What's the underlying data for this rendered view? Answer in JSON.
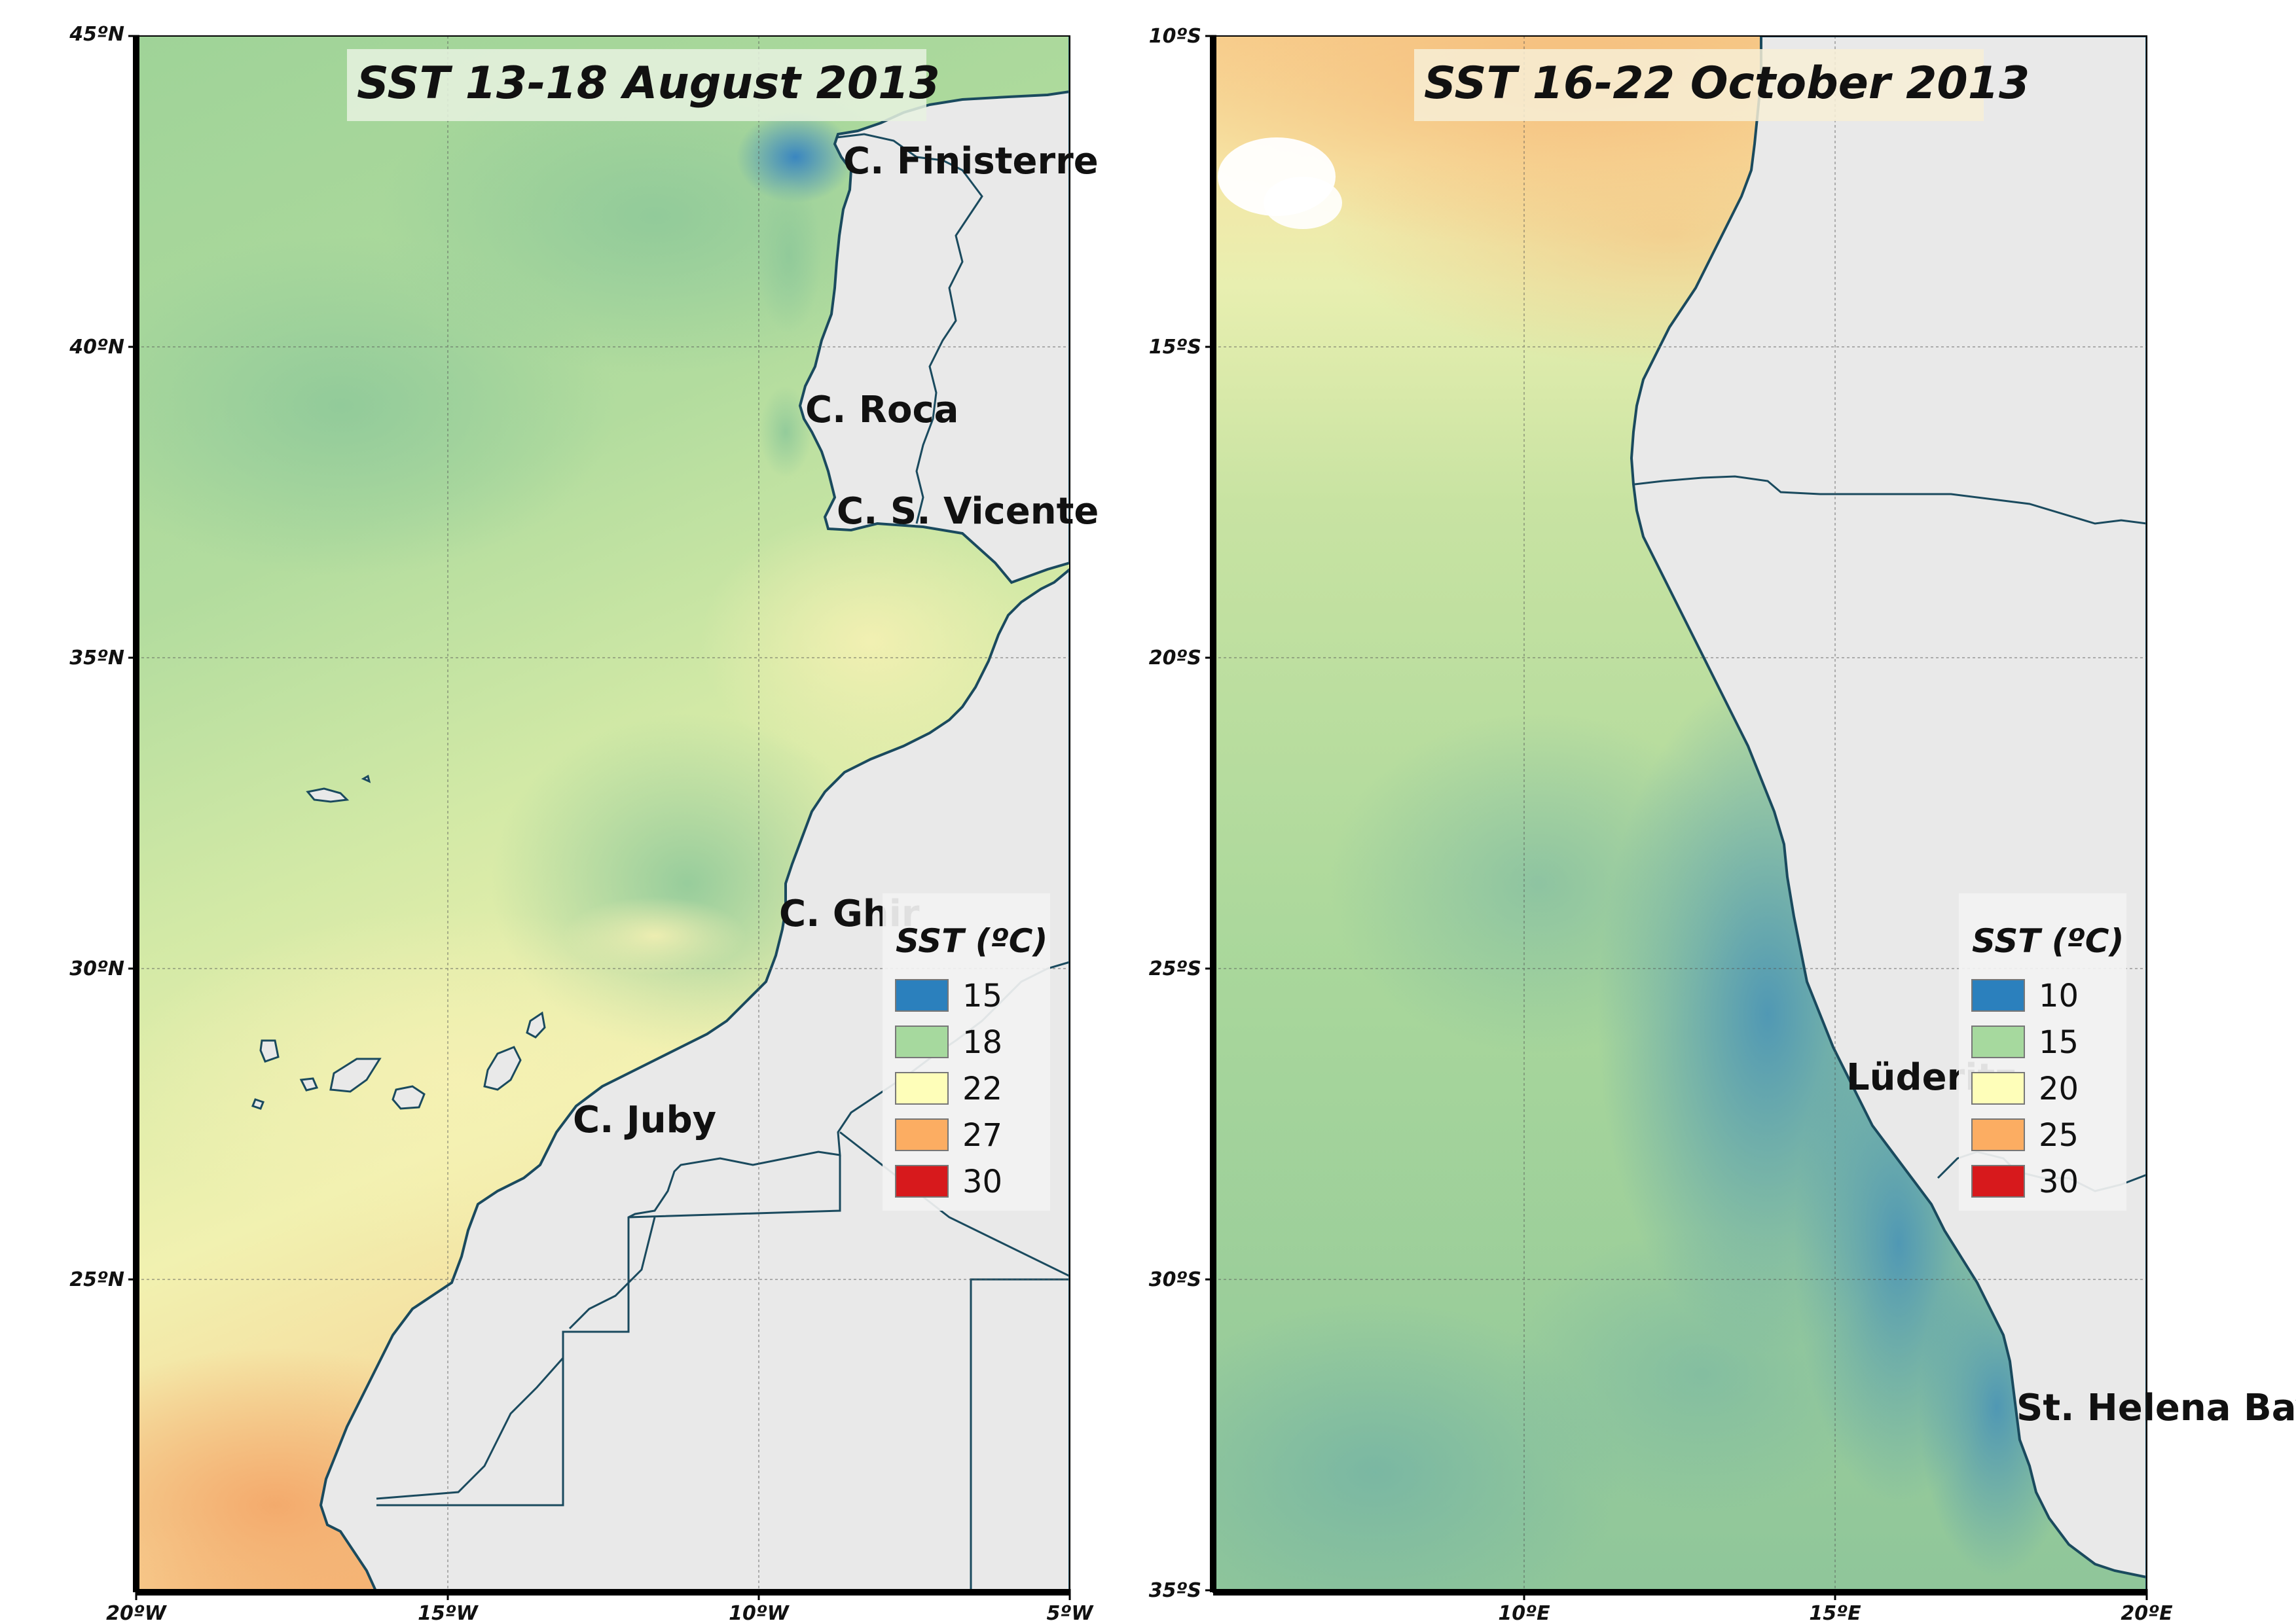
{
  "colors": {
    "land": "#e9e9e9",
    "coast": "#1a4a5e",
    "sst_15": "#2b80bd",
    "sst_18": "#a6d99e",
    "sst_22": "#fefeb9",
    "sst_27": "#fcad62",
    "sst_30": "#d7191c"
  },
  "panels": [
    {
      "title": "SST 13-18 August 2013",
      "y_ticks": [
        "45ºN",
        "40ºN",
        "35ºN",
        "30ºN",
        "25ºN"
      ],
      "x_ticks": [
        "20ºW",
        "15ºW",
        "10ºW",
        "5ºW"
      ],
      "places": [
        "C. Finisterre",
        "C. Roca",
        "C. S. Vicente",
        "C. Ghir",
        "C. Juby"
      ],
      "legend": {
        "title": "SST (ºC)",
        "items": [
          {
            "label": "15",
            "color": "#2b80bd"
          },
          {
            "label": "18",
            "color": "#a6d99e"
          },
          {
            "label": "22",
            "color": "#fefeb9"
          },
          {
            "label": "27",
            "color": "#fcad62"
          },
          {
            "label": "30",
            "color": "#d7191c"
          }
        ]
      }
    },
    {
      "title": "SST 16-22 October 2013",
      "y_ticks": [
        "10ºS",
        "15ºS",
        "20ºS",
        "25ºS",
        "30ºS",
        "35ºS"
      ],
      "x_ticks": [
        "10ºE",
        "15ºE",
        "20ºE"
      ],
      "places": [
        "Lüderitz",
        "St. Helena Bay"
      ],
      "legend": {
        "title": "SST (ºC)",
        "items": [
          {
            "label": "10",
            "color": "#2b80bd"
          },
          {
            "label": "15",
            "color": "#a6d99e"
          },
          {
            "label": "20",
            "color": "#fefeb9"
          },
          {
            "label": "25",
            "color": "#fcad62"
          },
          {
            "label": "30",
            "color": "#d7191c"
          }
        ]
      }
    }
  ]
}
